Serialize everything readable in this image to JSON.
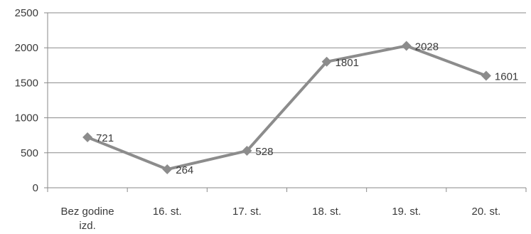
{
  "chart_data": {
    "type": "line",
    "title": "",
    "xlabel": "",
    "ylabel": "",
    "categories": [
      [
        "Bez godine",
        "izd."
      ],
      [
        "16. st."
      ],
      [
        "17. st."
      ],
      [
        "18. st."
      ],
      [
        "19. st."
      ],
      [
        "20. st."
      ]
    ],
    "series": [
      {
        "values": [
          721,
          264,
          528,
          1801,
          2028,
          1601
        ]
      }
    ],
    "data_labels": [
      "721",
      "264",
      "528",
      "1801",
      "2028",
      "1601"
    ],
    "y_ticks": [
      "0",
      "500",
      "1000",
      "1500",
      "2000",
      "2500"
    ],
    "ylim": [
      0,
      2500
    ],
    "grid": true,
    "legend": "none",
    "colors": {
      "series": "#8c8c8c",
      "grid": "#8a8a8a",
      "axis": "#8a8a8a",
      "text": "#3a3a3a"
    },
    "marker": "diamond"
  }
}
